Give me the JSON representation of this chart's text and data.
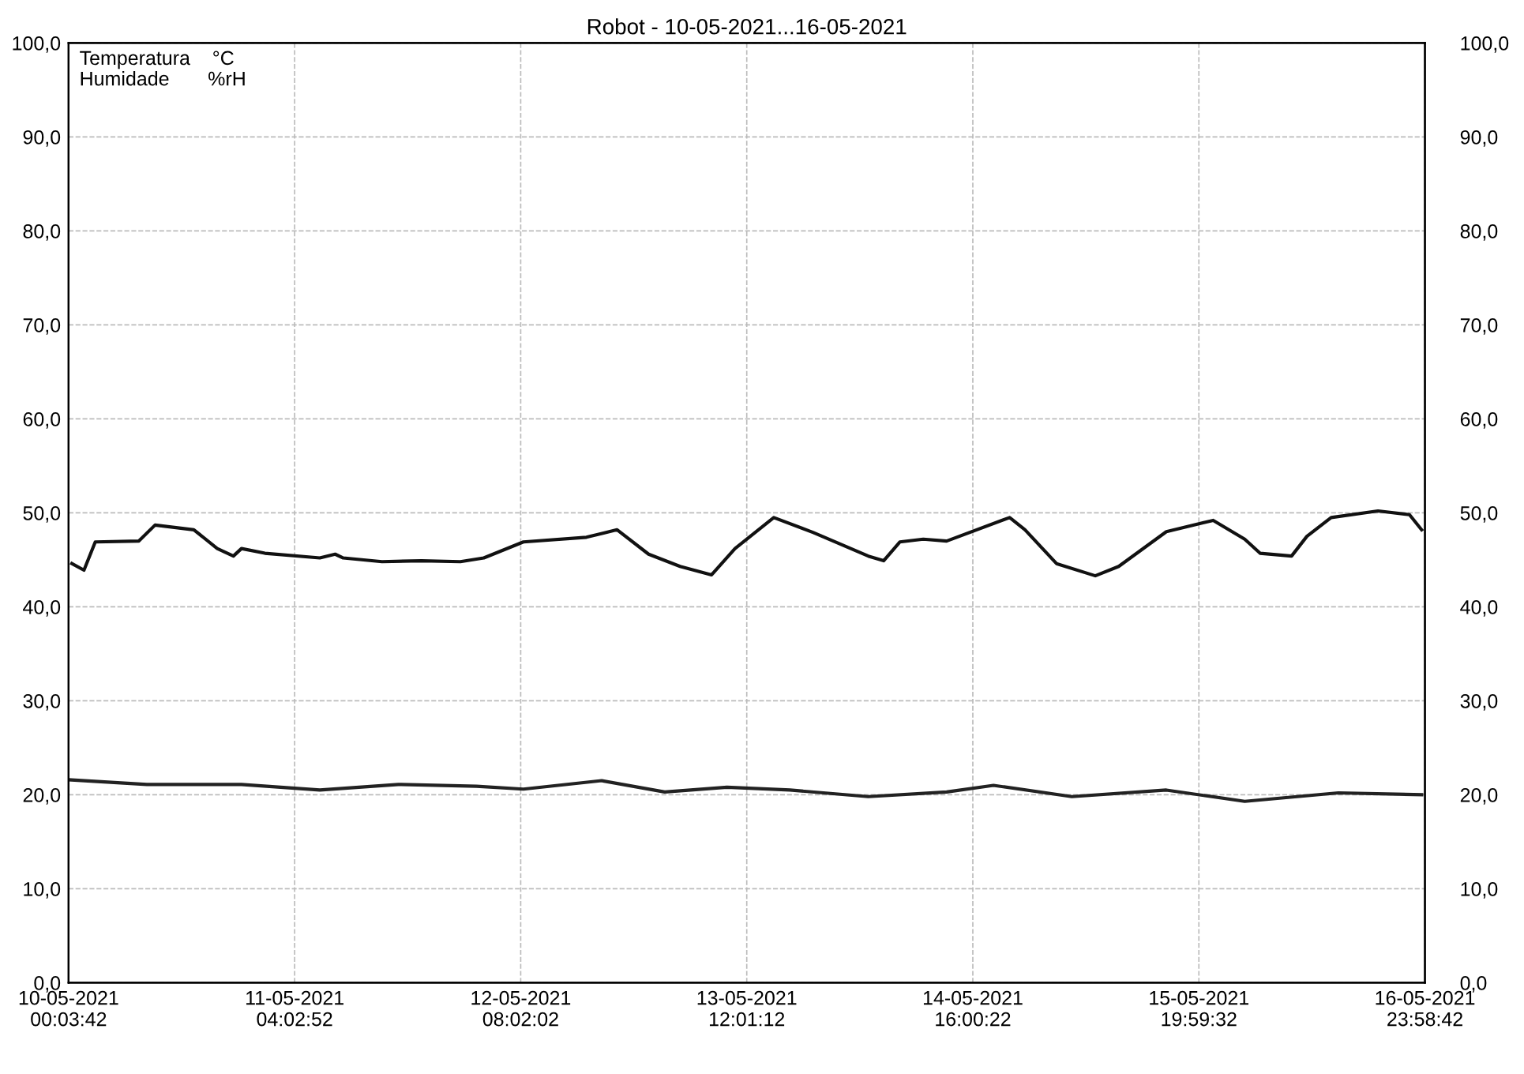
{
  "chart_data": {
    "type": "line",
    "title": "Robot - 10-05-2021...16-05-2021",
    "xlim": [
      "2021-05-10T00:03:42",
      "2021-05-16T23:58:42"
    ],
    "xticks": [
      {
        "value": "2021-05-10T00:03:42",
        "label": "10-05-2021\n00:03:42"
      },
      {
        "value": "2021-05-11T04:02:52",
        "label": "11-05-2021\n04:02:52"
      },
      {
        "value": "2021-05-12T08:02:02",
        "label": "12-05-2021\n08:02:02"
      },
      {
        "value": "2021-05-13T12:01:12",
        "label": "13-05-2021\n12:01:12"
      },
      {
        "value": "2021-05-14T16:00:22",
        "label": "14-05-2021\n16:00:22"
      },
      {
        "value": "2021-05-15T19:59:32",
        "label": "15-05-2021\n19:59:32"
      },
      {
        "value": "2021-05-16T23:58:42",
        "label": "16-05-2021\n23:58:42"
      }
    ],
    "ylim": [
      0,
      100
    ],
    "yticks": [
      {
        "value": 0,
        "label": "0,0"
      },
      {
        "value": 10,
        "label": "10,0"
      },
      {
        "value": 20,
        "label": "20,0"
      },
      {
        "value": 30,
        "label": "30,0"
      },
      {
        "value": 40,
        "label": "40,0"
      },
      {
        "value": 50,
        "label": "50,0"
      },
      {
        "value": 60,
        "label": "60,0"
      },
      {
        "value": 70,
        "label": "70,0"
      },
      {
        "value": 80,
        "label": "80,0"
      },
      {
        "value": 90,
        "label": "90,0"
      },
      {
        "value": 100,
        "label": "100,0"
      }
    ],
    "y2lim": [
      0,
      100
    ],
    "y2ticks": [
      {
        "value": 0,
        "label": "0,0"
      },
      {
        "value": 10,
        "label": "10,0"
      },
      {
        "value": 20,
        "label": "20,0"
      },
      {
        "value": 30,
        "label": "30,0"
      },
      {
        "value": 40,
        "label": "40,0"
      },
      {
        "value": 50,
        "label": "50,0"
      },
      {
        "value": 60,
        "label": "60,0"
      },
      {
        "value": 70,
        "label": "70,0"
      },
      {
        "value": 80,
        "label": "80,0"
      },
      {
        "value": 90,
        "label": "90,0"
      },
      {
        "value": 100,
        "label": "100,0"
      }
    ],
    "grid": true,
    "marker": "none",
    "line_style": "solid",
    "annotations": [
      "Temperatura    °C",
      "Humidade       %rH"
    ],
    "series": [
      {
        "color": "#222222",
        "x": [
          "2021-05-10T00:04",
          "2021-05-10T09:46",
          "2021-05-10T21:28",
          "2021-05-11T07:10",
          "2021-05-11T16:52",
          "2021-05-12T02:34",
          "2021-05-12T08:22",
          "2021-05-12T18:04",
          "2021-05-13T01:52",
          "2021-05-13T09:34",
          "2021-05-13T17:22",
          "2021-05-14T03:04",
          "2021-05-14T12:46",
          "2021-05-14T18:34",
          "2021-05-15T04:16",
          "2021-05-15T15:58",
          "2021-05-16T01:40",
          "2021-05-16T13:16",
          "2021-05-16T23:34"
        ],
        "values": [
          21.6,
          21.1,
          21.1,
          20.5,
          21.1,
          20.9,
          20.6,
          21.5,
          20.3,
          20.8,
          20.5,
          19.8,
          20.3,
          21.0,
          19.8,
          20.5,
          19.3,
          20.2,
          20.0
        ]
      },
      {
        "color": "#111111",
        "x": [
          "2021-05-10T00:28",
          "2021-05-10T01:58",
          "2021-05-10T03:22",
          "2021-05-10T08:46",
          "2021-05-10T10:46",
          "2021-05-10T15:34",
          "2021-05-10T18:28",
          "2021-05-10T20:28",
          "2021-05-10T21:28",
          "2021-05-11T00:22",
          "2021-05-11T07:10",
          "2021-05-11T09:04",
          "2021-05-11T10:04",
          "2021-05-11T14:52",
          "2021-05-11T19:46",
          "2021-05-12T00:34",
          "2021-05-12T03:28",
          "2021-05-12T08:22",
          "2021-05-12T16:10",
          "2021-05-12T19:58",
          "2021-05-12T23:52",
          "2021-05-13T03:46",
          "2021-05-13T07:40",
          "2021-05-13T10:34",
          "2021-05-13T15:22",
          "2021-05-13T20:16",
          "2021-05-14T03:04",
          "2021-05-14T04:58",
          "2021-05-14T06:58",
          "2021-05-14T09:52",
          "2021-05-14T12:46",
          "2021-05-14T20:34",
          "2021-05-14T22:28",
          "2021-05-15T02:22",
          "2021-05-15T07:10",
          "2021-05-15T10:04",
          "2021-05-15T15:58",
          "2021-05-15T21:46",
          "2021-05-16T01:40",
          "2021-05-16T03:34",
          "2021-05-16T07:28",
          "2021-05-16T09:22",
          "2021-05-16T12:22",
          "2021-05-16T18:10",
          "2021-05-16T22:04",
          "2021-05-16T23:34"
        ],
        "values": [
          44.6,
          43.9,
          46.9,
          47.0,
          48.7,
          48.2,
          46.2,
          45.4,
          46.2,
          45.7,
          45.2,
          45.6,
          45.2,
          44.8,
          44.9,
          44.8,
          45.2,
          46.9,
          47.4,
          48.2,
          45.6,
          44.3,
          43.4,
          46.2,
          49.5,
          47.9,
          45.4,
          44.9,
          46.9,
          47.2,
          47.0,
          49.5,
          48.2,
          44.6,
          43.3,
          44.3,
          48.0,
          49.2,
          47.2,
          45.7,
          45.4,
          47.5,
          49.5,
          50.2,
          49.8,
          48.2
        ]
      }
    ]
  }
}
